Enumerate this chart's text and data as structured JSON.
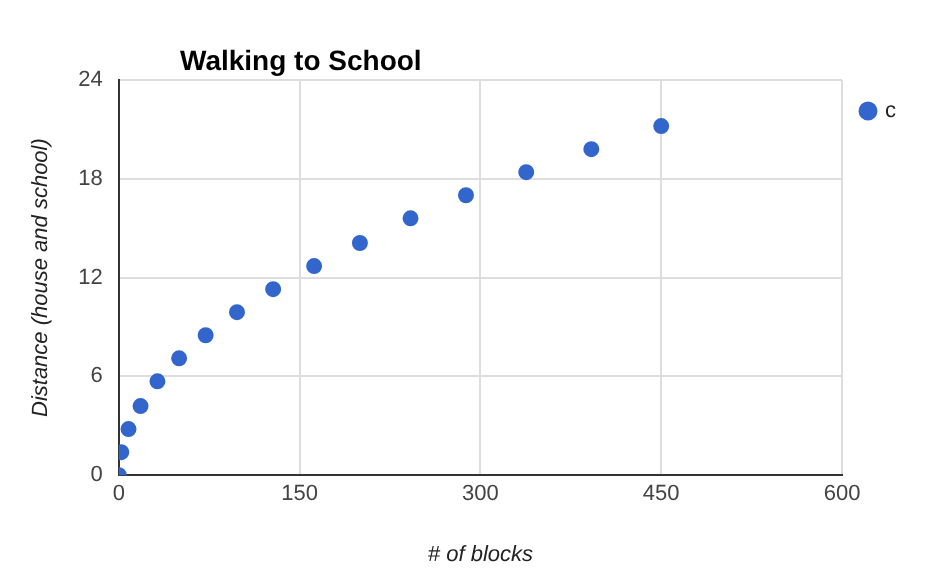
{
  "chart_data": {
    "type": "scatter",
    "title": "Walking to School",
    "xlabel": "# of blocks",
    "ylabel": "Distance (house and school)",
    "x": [
      0,
      2,
      8,
      18,
      32,
      50,
      72,
      98,
      128,
      162,
      200,
      242,
      288,
      338,
      392,
      450
    ],
    "series": [
      {
        "name": "c",
        "color": "#3366cc",
        "values": [
          0,
          1.4,
          2.8,
          4.2,
          5.7,
          7.1,
          8.5,
          9.9,
          11.3,
          12.7,
          14.1,
          15.6,
          17,
          18.4,
          19.8,
          21.2
        ]
      }
    ],
    "xlim": [
      0,
      600
    ],
    "xticks": [
      0,
      150,
      300,
      450,
      600
    ],
    "ylim": [
      0,
      24
    ],
    "yticks": [
      0,
      6,
      12,
      18,
      24
    ],
    "grid": true,
    "legend": "top right",
    "marker": "circle"
  }
}
